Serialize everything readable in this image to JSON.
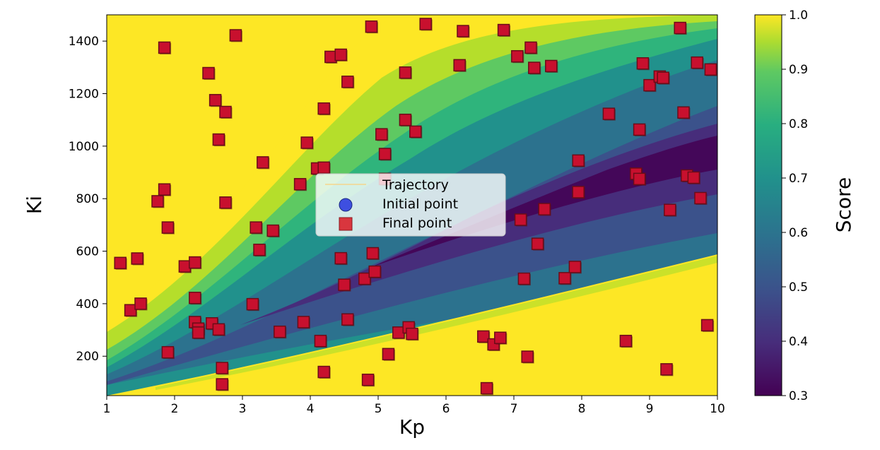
{
  "chart_data": {
    "type": "scatter",
    "title": "",
    "xlabel": "Kp",
    "ylabel": "Ki",
    "xlim": [
      1,
      10
    ],
    "ylim": [
      50,
      1500
    ],
    "xticks": [
      1,
      2,
      3,
      4,
      5,
      6,
      7,
      8,
      9,
      10
    ],
    "xtick_labels": [
      "1",
      "2",
      "3",
      "4",
      "5",
      "6",
      "7",
      "8",
      "9",
      "10"
    ],
    "yticks": [
      200,
      400,
      600,
      800,
      1000,
      1200,
      1400
    ],
    "ytick_labels": [
      "200",
      "400",
      "600",
      "800",
      "1000",
      "1200",
      "1400"
    ],
    "background": "filled contour of Score over (Kp, Ki): low-score valley (~0.3) running from lower-left (Kp 1, Ki ~150) to upper-right (Kp 10, Ki ~1000), rising to 1.0 toward the upper-left and bottom-right",
    "colorbar": {
      "label": "Score",
      "range": [
        0.3,
        1.0
      ],
      "ticks": [
        "0.3",
        "0.4",
        "0.5",
        "0.6",
        "0.7",
        "0.8",
        "0.9",
        "1.0"
      ],
      "colormap": "viridis"
    },
    "legend": {
      "position": "center",
      "entries": [
        {
          "label": "Trajectory",
          "marker": "line",
          "color": "#f5d58c"
        },
        {
          "label": "Initial point",
          "marker": "circle",
          "color": "#3e4fe0"
        },
        {
          "label": "Final point",
          "marker": "square",
          "color": "#d9363e"
        }
      ]
    },
    "series": [
      {
        "name": "Final point",
        "marker": "square",
        "color": "#c8102e",
        "points": [
          [
            1.2,
            555
          ],
          [
            1.45,
            572
          ],
          [
            1.35,
            375
          ],
          [
            1.5,
            400
          ],
          [
            1.9,
            215
          ],
          [
            1.75,
            790
          ],
          [
            1.85,
            835
          ],
          [
            1.9,
            690
          ],
          [
            1.85,
            1375
          ],
          [
            2.15,
            542
          ],
          [
            2.3,
            557
          ],
          [
            2.3,
            422
          ],
          [
            2.3,
            330
          ],
          [
            2.35,
            305
          ],
          [
            2.35,
            290
          ],
          [
            2.55,
            325
          ],
          [
            2.5,
            1278
          ],
          [
            2.6,
            1175
          ],
          [
            2.65,
            1025
          ],
          [
            2.65,
            302
          ],
          [
            2.7,
            155
          ],
          [
            2.7,
            93
          ],
          [
            2.75,
            1130
          ],
          [
            2.75,
            785
          ],
          [
            2.9,
            1422
          ],
          [
            3.15,
            398
          ],
          [
            3.2,
            690
          ],
          [
            3.25,
            605
          ],
          [
            3.3,
            938
          ],
          [
            3.45,
            678
          ],
          [
            3.55,
            293
          ],
          [
            3.85,
            855
          ],
          [
            3.9,
            330
          ],
          [
            3.95,
            1013
          ],
          [
            4.1,
            915
          ],
          [
            4.15,
            258
          ],
          [
            4.2,
            918
          ],
          [
            4.2,
            1143
          ],
          [
            4.2,
            140
          ],
          [
            4.3,
            1340
          ],
          [
            4.45,
            1348
          ],
          [
            4.45,
            573
          ],
          [
            4.5,
            472
          ],
          [
            4.55,
            1245
          ],
          [
            4.55,
            340
          ],
          [
            4.8,
            495
          ],
          [
            4.85,
            110
          ],
          [
            4.9,
            1455
          ],
          [
            4.92,
            592
          ],
          [
            4.95,
            522
          ],
          [
            5.05,
            1045
          ],
          [
            5.1,
            970
          ],
          [
            5.1,
            875
          ],
          [
            5.15,
            208
          ],
          [
            5.3,
            290
          ],
          [
            5.4,
            1100
          ],
          [
            5.4,
            1280
          ],
          [
            5.45,
            310
          ],
          [
            5.5,
            285
          ],
          [
            5.55,
            1055
          ],
          [
            5.7,
            1465
          ],
          [
            6.25,
            1438
          ],
          [
            6.2,
            1308
          ],
          [
            6.55,
            275
          ],
          [
            6.6,
            78
          ],
          [
            6.7,
            245
          ],
          [
            6.8,
            270
          ],
          [
            6.85,
            1442
          ],
          [
            7.05,
            1342
          ],
          [
            7.1,
            720
          ],
          [
            7.15,
            495
          ],
          [
            7.2,
            198
          ],
          [
            7.25,
            1375
          ],
          [
            7.3,
            1298
          ],
          [
            7.35,
            628
          ],
          [
            7.45,
            760
          ],
          [
            7.55,
            1305
          ],
          [
            7.75,
            497
          ],
          [
            7.9,
            540
          ],
          [
            7.95,
            945
          ],
          [
            7.95,
            825
          ],
          [
            8.4,
            1123
          ],
          [
            8.65,
            258
          ],
          [
            8.8,
            895
          ],
          [
            8.85,
            1063
          ],
          [
            8.85,
            875
          ],
          [
            8.9,
            1315
          ],
          [
            9.0,
            1232
          ],
          [
            9.15,
            1265
          ],
          [
            9.2,
            1260
          ],
          [
            9.25,
            150
          ],
          [
            9.3,
            757
          ],
          [
            9.45,
            1450
          ],
          [
            9.5,
            1128
          ],
          [
            9.55,
            888
          ],
          [
            9.65,
            880
          ],
          [
            9.7,
            1318
          ],
          [
            9.75,
            802
          ],
          [
            9.85,
            318
          ],
          [
            9.9,
            1292
          ]
        ]
      }
    ]
  }
}
